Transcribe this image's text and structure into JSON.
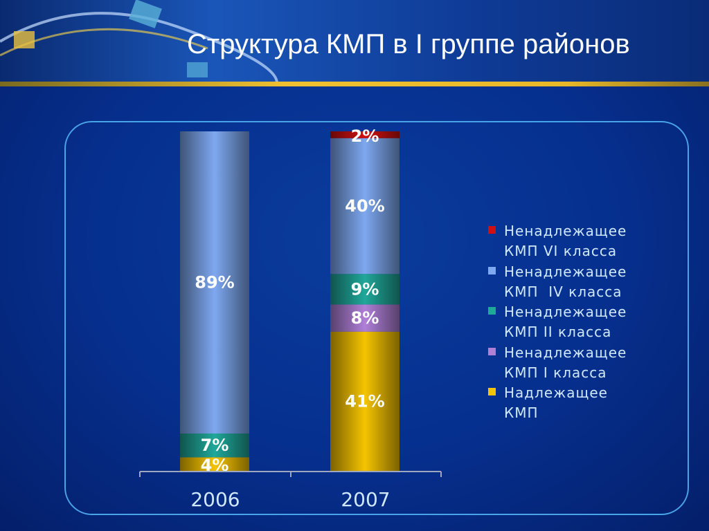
{
  "header": {
    "title": "Структура КМП в I группе районов"
  },
  "chart_data": {
    "type": "bar",
    "stacked": true,
    "percent": true,
    "title": "Структура КМП в I группе районов",
    "categories": [
      "2006",
      "2007"
    ],
    "ylim": [
      0,
      100
    ],
    "legend_position": "right",
    "series": [
      {
        "name": "Надлежащее\nКМП",
        "color": "#f5c400",
        "values": [
          4,
          41
        ]
      },
      {
        "name": "Ненадлежащее\nКМП I класса",
        "color": "#b080d8",
        "values": [
          0,
          8
        ]
      },
      {
        "name": "Ненадлежащее\nКМП II класса",
        "color": "#20a89a",
        "values": [
          7,
          9
        ]
      },
      {
        "name": "Ненадлежащее\nКМП  IV класса",
        "color": "#7ea8f0",
        "values": [
          89,
          40
        ]
      },
      {
        "name": "Ненадлежащее\nКМП VI класса",
        "color": "#d01010",
        "values": [
          0,
          2
        ]
      }
    ]
  }
}
